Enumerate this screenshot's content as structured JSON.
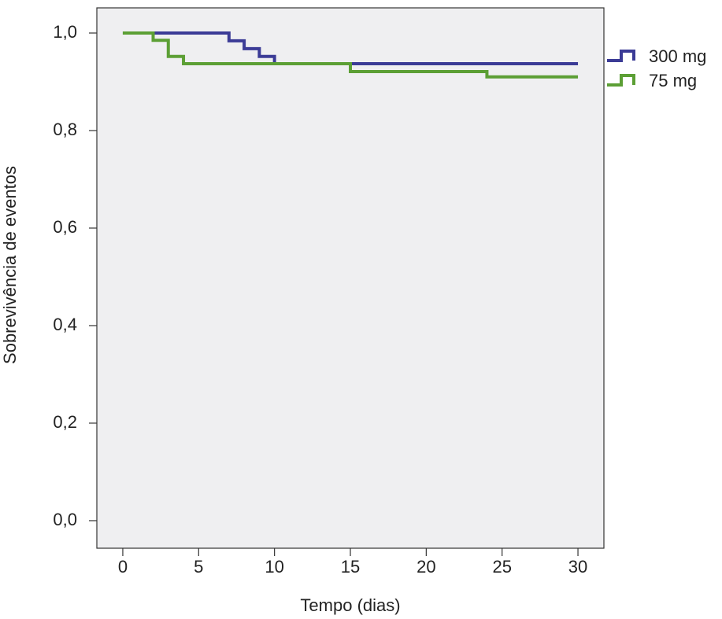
{
  "chart_data": {
    "type": "step",
    "x_label": "Tempo (dias)",
    "y_label": "Sobrevivência de eventos",
    "series": [
      {
        "name": "300 mg",
        "color": "#3b3b96",
        "x": [
          0,
          7,
          8,
          9,
          10,
          30
        ],
        "values": [
          1.0,
          0.984,
          0.968,
          0.952,
          0.937,
          0.937
        ]
      },
      {
        "name": "75 mg",
        "color": "#5c9f35",
        "x": [
          0,
          2,
          3,
          4,
          15,
          24,
          30
        ],
        "values": [
          1.0,
          0.985,
          0.952,
          0.937,
          0.921,
          0.91,
          0.91
        ]
      }
    ],
    "xlim": [
      -1.71,
      31.71
    ],
    "ylim": [
      -0.0565,
      1.0516
    ],
    "xticks": [
      0,
      5,
      10,
      15,
      20,
      25,
      30
    ],
    "yticks": [
      {
        "value": 0.0,
        "label": "0,0"
      },
      {
        "value": 0.2,
        "label": "0,2"
      },
      {
        "value": 0.4,
        "label": "0,4"
      },
      {
        "value": 0.6,
        "label": "0,6"
      },
      {
        "value": 0.8,
        "label": "0,8"
      },
      {
        "value": 1.0,
        "label": "1,0"
      }
    ],
    "legend": "right",
    "grid": false,
    "background": "#efeff1"
  }
}
